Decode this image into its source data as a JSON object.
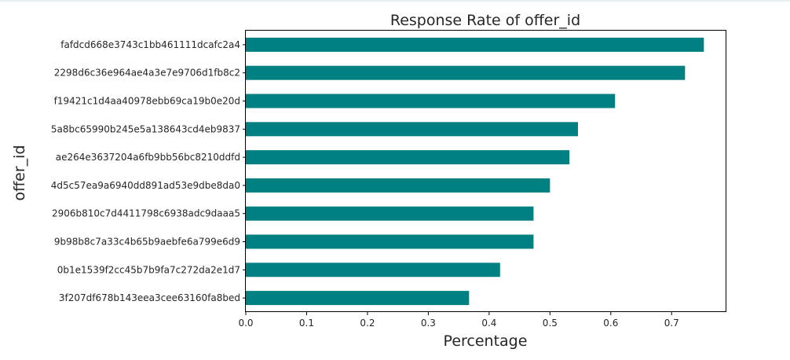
{
  "chart_data": {
    "type": "bar",
    "orientation": "horizontal",
    "title": "Response Rate of offer_id",
    "xlabel": "Percentage",
    "ylabel": "offer_id",
    "xlim": [
      0,
      0.79
    ],
    "x_ticks": [
      0.0,
      0.1,
      0.2,
      0.3,
      0.4,
      0.5,
      0.6,
      0.7
    ],
    "x_tick_labels": [
      "0.0",
      "0.1",
      "0.2",
      "0.3",
      "0.4",
      "0.5",
      "0.6",
      "0.7"
    ],
    "grid": false,
    "bar_color": "#008080",
    "categories": [
      "fafdcd668e3743c1bb461111dcafc2a4",
      "2298d6c36e964ae4a3e7e9706d1fb8c2",
      "f19421c1d4aa40978ebb69ca19b0e20d",
      "5a8bc65990b245e5a138643cd4eb9837",
      "ae264e3637204a6fb9bb56bc8210ddfd",
      "4d5c57ea9a6940dd891ad53e9dbe8da0",
      "2906b810c7d4411798c6938adc9daaa5",
      "9b98b8c7a33c4b65b9aebfe6a799e6d9",
      "0b1e1539f2cc45b7b9fa7c272da2e1d7",
      "3f207df678b143eea3cee63160fa8bed"
    ],
    "values": [
      0.753,
      0.722,
      0.607,
      0.546,
      0.532,
      0.5,
      0.473,
      0.473,
      0.418,
      0.367
    ]
  }
}
